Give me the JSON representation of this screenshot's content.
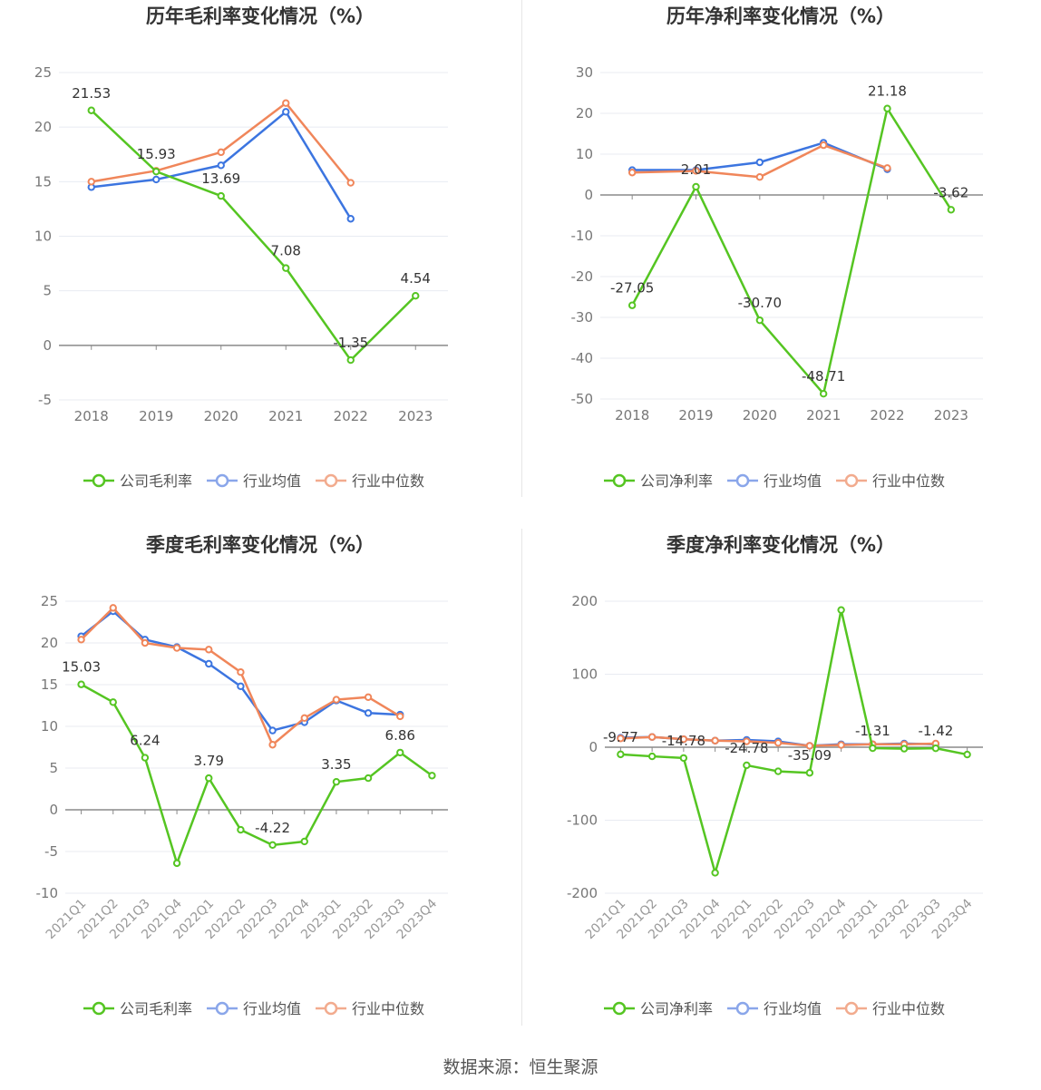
{
  "colors": {
    "company": "#55c522",
    "avg": "#3c75e0",
    "median": "#f0865a",
    "grid": "#e8ebf2",
    "axis": "#8a8a8a",
    "tick": "#777777",
    "title": "#333333"
  },
  "footer": {
    "text": "数据来源：恒生聚源"
  },
  "chart_data": [
    {
      "type": "line",
      "title": "历年毛利率变化情况（%）",
      "categories": [
        "2018",
        "2019",
        "2020",
        "2021",
        "2022",
        "2023"
      ],
      "ylim": [
        -5,
        25
      ],
      "yticks": [
        -5,
        0,
        5,
        10,
        15,
        20,
        25
      ],
      "series": [
        {
          "name": "公司毛利率",
          "values": [
            21.53,
            15.93,
            13.69,
            7.08,
            -1.35,
            4.54
          ],
          "labels": [
            "21.53",
            "15.93",
            "13.69",
            "7.08",
            "-1.35",
            "4.54"
          ]
        },
        {
          "name": "行业均值",
          "values": [
            14.5,
            15.2,
            16.5,
            21.4,
            11.6,
            null
          ]
        },
        {
          "name": "行业中位数",
          "values": [
            15.0,
            16.0,
            17.7,
            22.2,
            14.9,
            null
          ]
        }
      ]
    },
    {
      "type": "line",
      "title": "历年净利率变化情况（%）",
      "categories": [
        "2018",
        "2019",
        "2020",
        "2021",
        "2022",
        "2023"
      ],
      "ylim": [
        -50,
        30
      ],
      "yticks": [
        -50,
        -40,
        -30,
        -20,
        -10,
        0,
        10,
        20,
        30
      ],
      "series": [
        {
          "name": "公司净利率",
          "values": [
            -27.05,
            2.01,
            -30.7,
            -48.71,
            21.18,
            -3.62
          ],
          "labels": [
            "-27.05",
            "2.01",
            "-30.70",
            "-48.71",
            "21.18",
            "-3.62"
          ]
        },
        {
          "name": "行业均值",
          "values": [
            6.1,
            6.1,
            8.0,
            12.8,
            6.3,
            null
          ]
        },
        {
          "name": "行业中位数",
          "values": [
            5.5,
            5.9,
            4.4,
            12.2,
            6.6,
            null
          ]
        }
      ]
    },
    {
      "type": "line",
      "title": "季度毛利率变化情况（%）",
      "categories": [
        "2021Q1",
        "2021Q2",
        "2021Q3",
        "2021Q4",
        "2022Q1",
        "2022Q2",
        "2022Q3",
        "2022Q4",
        "2023Q1",
        "2023Q2",
        "2023Q3",
        "2023Q4"
      ],
      "ylim": [
        -10,
        25
      ],
      "yticks": [
        -10,
        -5,
        0,
        5,
        10,
        15,
        20,
        25
      ],
      "series": [
        {
          "name": "公司毛利率",
          "values": [
            15.03,
            12.9,
            6.24,
            -6.4,
            3.79,
            -2.4,
            -4.22,
            -3.8,
            3.35,
            3.8,
            6.86,
            4.1
          ],
          "labels": [
            "15.03",
            "",
            "6.24",
            "",
            "3.79",
            "",
            "-4.22",
            "",
            "3.35",
            "",
            "6.86",
            ""
          ]
        },
        {
          "name": "行业均值",
          "values": [
            20.8,
            23.8,
            20.4,
            19.5,
            17.5,
            14.8,
            9.5,
            10.5,
            13.1,
            11.6,
            11.4,
            null
          ]
        },
        {
          "name": "行业中位数",
          "values": [
            20.4,
            24.2,
            20.0,
            19.4,
            19.2,
            16.5,
            7.8,
            11.0,
            13.2,
            13.5,
            11.2,
            null
          ]
        }
      ]
    },
    {
      "type": "line",
      "title": "季度净利率变化情况（%）",
      "categories": [
        "2021Q1",
        "2021Q2",
        "2021Q3",
        "2021Q4",
        "2022Q1",
        "2022Q2",
        "2022Q3",
        "2022Q4",
        "2023Q1",
        "2023Q2",
        "2023Q3",
        "2023Q4"
      ],
      "ylim": [
        -200,
        200
      ],
      "yticks": [
        -200,
        -100,
        0,
        100,
        200
      ],
      "series": [
        {
          "name": "公司净利率",
          "values": [
            -9.77,
            -12.5,
            -14.78,
            -172.0,
            -24.78,
            -33.0,
            -35.09,
            188.0,
            -1.31,
            -2.0,
            -1.42,
            -10.0
          ],
          "labels": [
            "-9.77",
            "",
            "-14.78",
            "",
            "-24.78",
            "",
            "-35.09",
            "",
            "-1.31",
            "",
            "-1.42",
            ""
          ]
        },
        {
          "name": "行业均值",
          "values": [
            13.0,
            14.0,
            11.0,
            9.0,
            10.0,
            8.0,
            2.0,
            4.0,
            4.0,
            5.0,
            4.0,
            null
          ]
        },
        {
          "name": "行业中位数",
          "values": [
            12.0,
            14.0,
            11.0,
            9.0,
            8.0,
            6.0,
            2.0,
            3.0,
            4.0,
            4.0,
            5.0,
            null
          ]
        }
      ]
    }
  ]
}
